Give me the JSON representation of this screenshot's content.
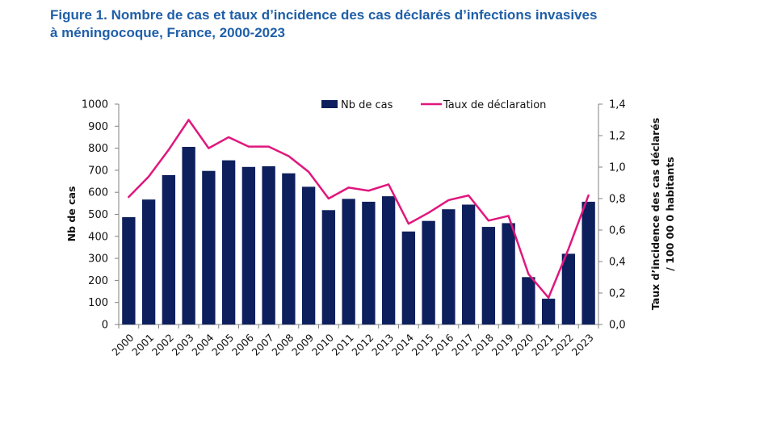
{
  "figure": {
    "title_line1": "Figure 1. Nombre de cas et taux d’incidence des cas déclarés d’infections invasives",
    "title_line2": "à méningocoque, France, 2000-2023"
  },
  "chart_data": {
    "type": "bar",
    "categories": [
      "2000",
      "2001",
      "2002",
      "2003",
      "2004",
      "2005",
      "2006",
      "2007",
      "2008",
      "2009",
      "2010",
      "2011",
      "2012",
      "2013",
      "2014",
      "2015",
      "2016",
      "2017",
      "2018",
      "2019",
      "2020",
      "2021",
      "2022",
      "2023"
    ],
    "series": [
      {
        "name": "Nb de cas",
        "type": "bar",
        "axis": "left",
        "color": "#0d1f5c",
        "values": [
          487,
          567,
          678,
          806,
          697,
          745,
          715,
          718,
          686,
          625,
          519,
          570,
          557,
          582,
          422,
          470,
          523,
          544,
          443,
          460,
          215,
          117,
          321,
          557
        ]
      },
      {
        "name": "Taux de déclaration",
        "type": "line",
        "axis": "right",
        "color": "#e0177e",
        "values": [
          0.81,
          0.94,
          1.11,
          1.3,
          1.12,
          1.19,
          1.13,
          1.13,
          1.07,
          0.97,
          0.8,
          0.87,
          0.85,
          0.89,
          0.64,
          0.71,
          0.79,
          0.82,
          0.66,
          0.69,
          0.32,
          0.17,
          0.48,
          0.82
        ]
      }
    ],
    "y_left": {
      "label": "Nb de cas",
      "min": 0,
      "max": 1000,
      "ticks": [
        "0",
        "100",
        "200",
        "300",
        "400",
        "500",
        "600",
        "700",
        "800",
        "900",
        "1000"
      ]
    },
    "y_right": {
      "label_line1": "Taux d’incidence des cas déclarés",
      "label_line2": "/ 100 00 0 habitants",
      "min": 0,
      "max": 1.4,
      "ticks": [
        "0,0",
        "0,2",
        "0,4",
        "0,6",
        "0,8",
        "1,0",
        "1,2",
        "1,4"
      ]
    },
    "legend_position": "top-center",
    "grid": false
  }
}
